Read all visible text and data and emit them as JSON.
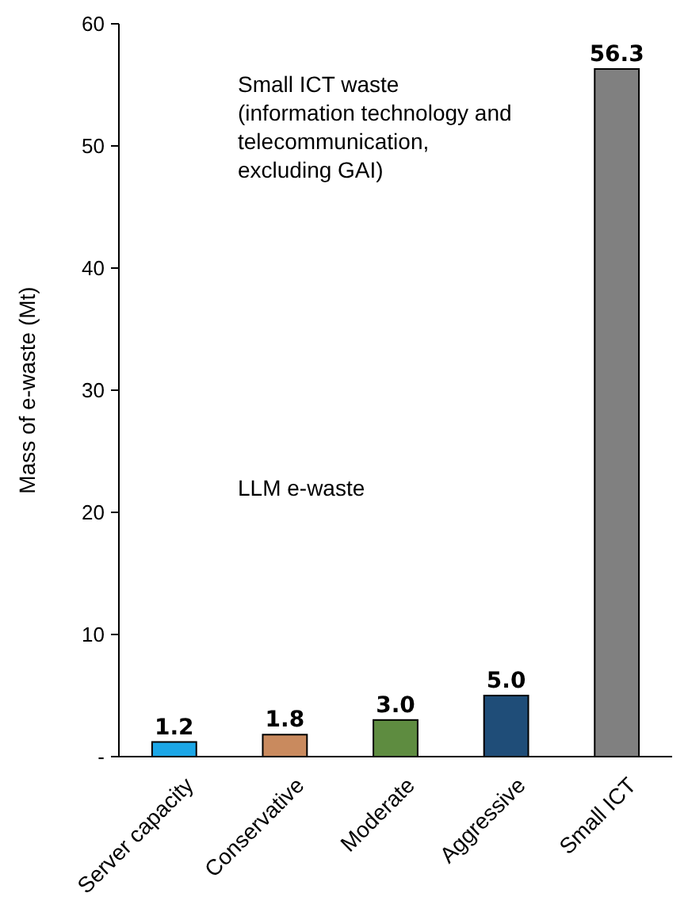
{
  "chart_data": {
    "type": "bar",
    "ylabel": "Mass of e-waste (Mt)",
    "categories": [
      "Server capacity",
      "Conservative",
      "Moderate",
      "Aggressive",
      "Small ICT"
    ],
    "values": [
      1.2,
      1.8,
      3.0,
      5.0,
      56.3
    ],
    "colors": [
      "#1ba6e6",
      "#c98a5e",
      "#5e8c40",
      "#1f4d78",
      "#808080"
    ],
    "value_labels": [
      "1.2",
      "1.8",
      "3.0",
      "5.0",
      "56.3"
    ],
    "ylim": [
      0,
      60
    ],
    "yticks": [
      {
        "value": 0,
        "label": "-"
      },
      10,
      20,
      30,
      40,
      50,
      60
    ],
    "grid": false,
    "annotations": [
      "Small ICT waste (information technology and telecommunication, excluding GAI)",
      "LLM e-waste"
    ]
  }
}
